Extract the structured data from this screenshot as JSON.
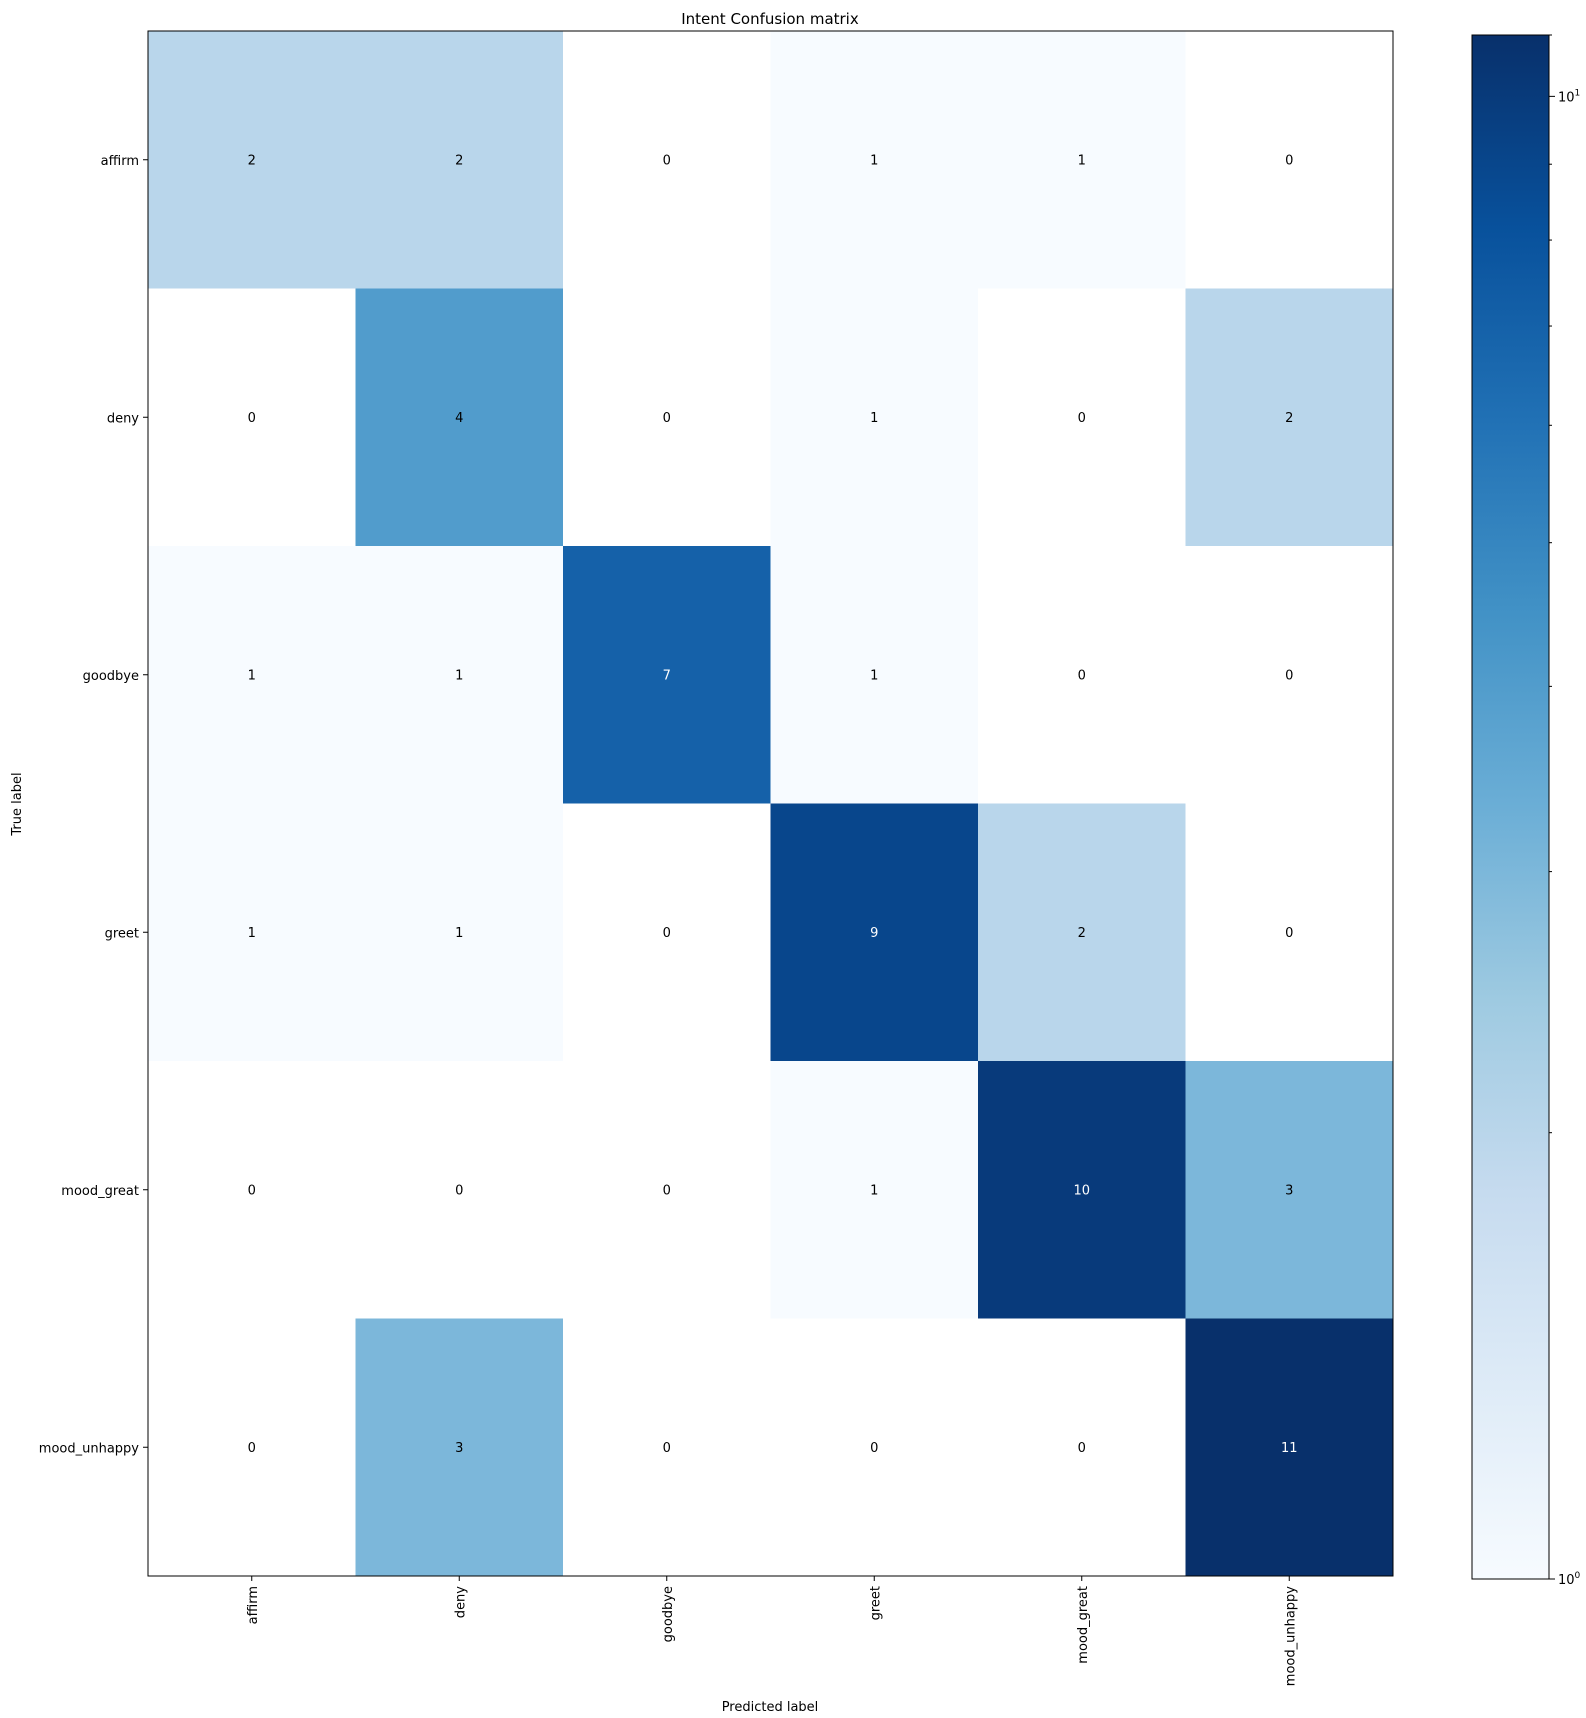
{
  "chart_data": {
    "type": "heatmap",
    "title": "Intent Confusion matrix",
    "xlabel": "Predicted label",
    "ylabel": "True label",
    "x_categories": [
      "affirm",
      "deny",
      "goodbye",
      "greet",
      "mood_great",
      "mood_unhappy"
    ],
    "y_categories": [
      "affirm",
      "deny",
      "goodbye",
      "greet",
      "mood_great",
      "mood_unhappy"
    ],
    "values": [
      [
        2,
        2,
        0,
        1,
        1,
        0
      ],
      [
        0,
        4,
        0,
        1,
        0,
        2
      ],
      [
        1,
        1,
        7,
        1,
        0,
        0
      ],
      [
        1,
        1,
        0,
        9,
        2,
        0
      ],
      [
        0,
        0,
        0,
        1,
        10,
        3
      ],
      [
        0,
        3,
        0,
        0,
        0,
        11
      ]
    ],
    "colormap": "Blues",
    "color_scale": "log",
    "colorbar": {
      "range": [
        1,
        11
      ],
      "tick_labels": [
        {
          "base": "10",
          "exp": "0",
          "value": 1
        },
        {
          "base": "10",
          "exp": "1",
          "value": 10
        }
      ]
    },
    "text_colors": {
      "dark": "#000000",
      "light": "#ffffff"
    }
  }
}
